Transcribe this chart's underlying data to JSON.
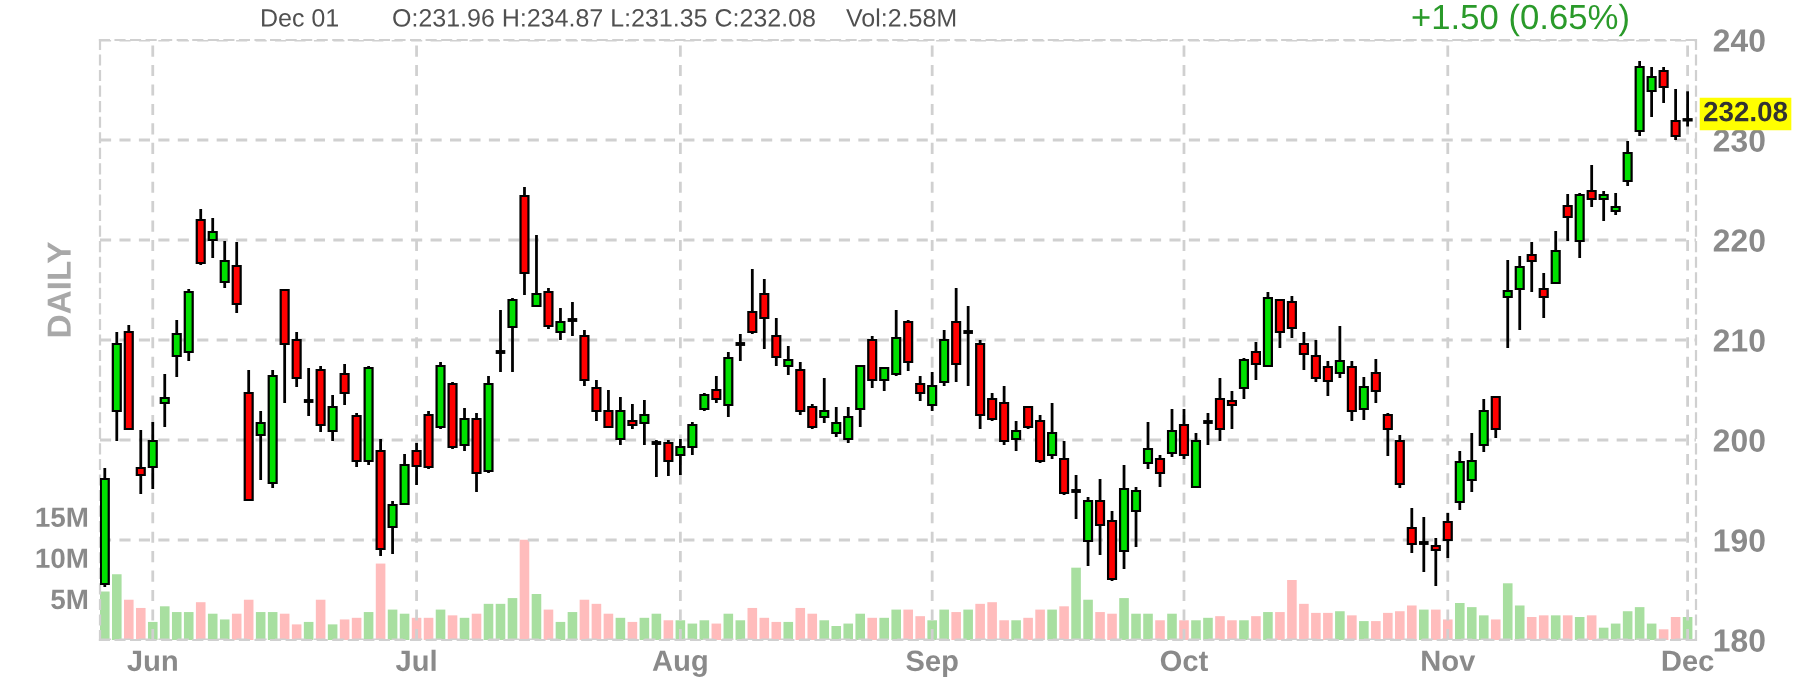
{
  "chart_data": {
    "type": "candlestick",
    "categories": [
      null,
      null,
      null,
      null,
      "Jun",
      null,
      null,
      null,
      null,
      null,
      null,
      null,
      null,
      null,
      null,
      null,
      null,
      null,
      null,
      null,
      null,
      null,
      null,
      null,
      null,
      null,
      "Jul",
      null,
      null,
      null,
      null,
      null,
      null,
      null,
      null,
      null,
      null,
      null,
      null,
      null,
      null,
      null,
      null,
      null,
      null,
      null,
      null,
      null,
      "Aug",
      null,
      null,
      null,
      null,
      null,
      null,
      null,
      null,
      null,
      null,
      null,
      null,
      null,
      null,
      null,
      null,
      null,
      null,
      null,
      null,
      "Sep",
      null,
      null,
      null,
      null,
      null,
      null,
      null,
      null,
      null,
      null,
      null,
      null,
      null,
      null,
      null,
      null,
      null,
      null,
      null,
      null,
      "Oct",
      null,
      null,
      null,
      null,
      null,
      null,
      null,
      null,
      null,
      null,
      null,
      null,
      null,
      null,
      null,
      null,
      null,
      null,
      null,
      null,
      null,
      "Nov",
      null,
      null,
      null,
      null,
      null,
      null,
      null,
      null,
      null,
      null,
      null,
      null,
      null,
      null,
      null,
      null,
      null,
      null,
      null,
      "Dec"
    ],
    "series": [
      {
        "type": "bar",
        "axis": "y2",
        "values": [
          5.9,
          8.0,
          4.9,
          3.9,
          2.2,
          4.1,
          3.4,
          3.4,
          4.6,
          3.2,
          2.5,
          3.2,
          4.9,
          3.4,
          3.4,
          3.2,
          1.9,
          2.2,
          4.9,
          1.9,
          2.5,
          2.7,
          3.4,
          9.3,
          3.7,
          3.2,
          2.7,
          2.7,
          3.7,
          3.0,
          2.7,
          3.2,
          4.4,
          4.4,
          5.1,
          12.2,
          5.6,
          3.7,
          2.2,
          3.4,
          4.9,
          4.4,
          3.2,
          2.7,
          2.2,
          2.7,
          3.2,
          2.4,
          2.4,
          2.0,
          2.4,
          2.0,
          3.2,
          2.4,
          3.9,
          2.7,
          2.2,
          2.2,
          3.9,
          3.2,
          2.4,
          1.7,
          2.0,
          3.2,
          2.7,
          2.7,
          3.7,
          3.7,
          2.9,
          2.4,
          3.7,
          3.4,
          3.7,
          4.4,
          4.6,
          2.4,
          2.4,
          2.7,
          3.7,
          3.7,
          4.1,
          8.8,
          4.9,
          3.4,
          3.2,
          5.1,
          3.2,
          3.2,
          2.4,
          3.2,
          2.4,
          2.4,
          2.7,
          2.9,
          2.4,
          2.4,
          2.9,
          3.4,
          3.4,
          7.3,
          4.4,
          3.3,
          3.3,
          3.5,
          3.0,
          2.3,
          2.3,
          3.3,
          3.5,
          4.2,
          3.7,
          3.7,
          2.5,
          4.5,
          4.0,
          3.0,
          2.5,
          6.9,
          4.2,
          2.8,
          3.0,
          3.0,
          3.0,
          2.8,
          3.0,
          1.5,
          2.0,
          3.5,
          4.0,
          2.0,
          1.3,
          2.8,
          2.8
        ],
        "colors": [
          "#a8dfa0",
          "#a8dfa0",
          "#ffbcbc",
          "#ffbcbc",
          "#a8dfa0",
          "#a8dfa0",
          "#a8dfa0",
          "#a8dfa0",
          "#ffbcbc",
          "#a8dfa0",
          "#a8dfa0",
          "#ffbcbc",
          "#ffbcbc",
          "#a8dfa0",
          "#a8dfa0",
          "#ffbcbc",
          "#ffbcbc",
          "#a8dfa0",
          "#ffbcbc",
          "#a8dfa0",
          "#ffbcbc",
          "#ffbcbc",
          "#a8dfa0",
          "#ffbcbc",
          "#a8dfa0",
          "#a8dfa0",
          "#ffbcbc",
          "#ffbcbc",
          "#a8dfa0",
          "#ffbcbc",
          "#a8dfa0",
          "#ffbcbc",
          "#a8dfa0",
          "#a8dfa0",
          "#a8dfa0",
          "#ffbcbc",
          "#a8dfa0",
          "#ffbcbc",
          "#a8dfa0",
          "#a8dfa0",
          "#ffbcbc",
          "#ffbcbc",
          "#ffbcbc",
          "#a8dfa0",
          "#ffbcbc",
          "#a8dfa0",
          "#a8dfa0",
          "#ffbcbc",
          "#a8dfa0",
          "#a8dfa0",
          "#a8dfa0",
          "#ffbcbc",
          "#a8dfa0",
          "#a8dfa0",
          "#ffbcbc",
          "#ffbcbc",
          "#ffbcbc",
          "#a8dfa0",
          "#ffbcbc",
          "#ffbcbc",
          "#a8dfa0",
          "#a8dfa0",
          "#a8dfa0",
          "#a8dfa0",
          "#ffbcbc",
          "#a8dfa0",
          "#a8dfa0",
          "#ffbcbc",
          "#ffbcbc",
          "#a8dfa0",
          "#a8dfa0",
          "#ffbcbc",
          "#a8dfa0",
          "#ffbcbc",
          "#ffbcbc",
          "#ffbcbc",
          "#a8dfa0",
          "#ffbcbc",
          "#ffbcbc",
          "#a8dfa0",
          "#ffbcbc",
          "#a8dfa0",
          "#a8dfa0",
          "#ffbcbc",
          "#ffbcbc",
          "#a8dfa0",
          "#a8dfa0",
          "#a8dfa0",
          "#ffbcbc",
          "#a8dfa0",
          "#ffbcbc",
          "#a8dfa0",
          "#a8dfa0",
          "#ffbcbc",
          "#ffbcbc",
          "#a8dfa0",
          "#ffbcbc",
          "#a8dfa0",
          "#ffbcbc",
          "#ffbcbc",
          "#ffbcbc",
          "#ffbcbc",
          "#ffbcbc",
          "#a8dfa0",
          "#ffbcbc",
          "#a8dfa0",
          "#ffbcbc",
          "#ffbcbc",
          "#ffbcbc",
          "#ffbcbc",
          "#a8dfa0",
          "#ffbcbc",
          "#ffbcbc",
          "#a8dfa0",
          "#a8dfa0",
          "#a8dfa0",
          "#ffbcbc",
          "#a8dfa0",
          "#a8dfa0",
          "#ffbcbc",
          "#ffbcbc",
          "#a8dfa0",
          "#ffbcbc",
          "#a8dfa0",
          "#ffbcbc",
          "#a8dfa0",
          "#a8dfa0",
          "#a8dfa0",
          "#a8dfa0",
          "#a8dfa0",
          "#ffbcbc",
          "#ffbcbc",
          "#a8dfa0"
        ]
      },
      {
        "ohlc": [
          [
            185.6,
            197.2,
            185.3,
            196.1
          ],
          [
            202.9,
            210.8,
            199.9,
            209.6
          ],
          [
            210.8,
            211.5,
            201.0,
            201.1
          ],
          [
            197.2,
            201.0,
            194.6,
            196.5
          ],
          [
            197.3,
            201.8,
            195.1,
            199.9
          ],
          [
            203.7,
            206.6,
            201.3,
            204.2
          ],
          [
            208.4,
            212.0,
            206.3,
            210.6
          ],
          [
            208.8,
            215.1,
            207.9,
            214.8
          ],
          [
            222.0,
            223.1,
            217.5,
            217.7
          ],
          [
            220.0,
            222.2,
            218.2,
            220.8
          ],
          [
            215.8,
            219.9,
            215.2,
            217.9
          ],
          [
            217.4,
            219.8,
            212.7,
            213.6
          ],
          [
            204.7,
            207.0,
            193.9,
            194.0
          ],
          [
            200.5,
            202.9,
            196.0,
            201.7
          ],
          [
            195.7,
            207.0,
            195.2,
            206.4
          ],
          [
            215.0,
            215.1,
            203.7,
            209.6
          ],
          [
            210.0,
            210.8,
            205.3,
            206.2
          ],
          [
            203.9,
            207.2,
            202.4,
            203.9
          ],
          [
            207.0,
            207.4,
            200.8,
            201.5
          ],
          [
            200.9,
            204.5,
            199.9,
            203.3
          ],
          [
            206.6,
            207.6,
            203.5,
            204.7
          ],
          [
            202.4,
            202.7,
            197.3,
            197.9
          ],
          [
            197.9,
            207.4,
            197.5,
            207.2
          ],
          [
            198.9,
            200.1,
            188.4,
            189.1
          ],
          [
            191.3,
            193.9,
            188.6,
            193.5
          ],
          [
            193.6,
            198.6,
            193.5,
            197.5
          ],
          [
            198.9,
            199.7,
            195.5,
            197.4
          ],
          [
            202.5,
            202.9,
            197.1,
            197.3
          ],
          [
            201.3,
            207.8,
            201.1,
            207.4
          ],
          [
            205.6,
            205.8,
            199.1,
            199.3
          ],
          [
            199.5,
            203.2,
            198.9,
            202.1
          ],
          [
            202.1,
            202.7,
            194.8,
            196.7
          ],
          [
            196.9,
            206.4,
            196.7,
            205.6
          ],
          [
            208.8,
            213.0,
            206.8,
            208.8
          ],
          [
            211.3,
            214.2,
            206.8,
            214.0
          ],
          [
            224.4,
            225.3,
            214.5,
            216.7
          ],
          [
            213.4,
            220.5,
            213.3,
            214.6
          ],
          [
            214.8,
            215.2,
            211.1,
            211.4
          ],
          [
            210.8,
            213.2,
            210.0,
            211.8
          ],
          [
            212.0,
            213.8,
            210.4,
            212.0
          ],
          [
            210.4,
            211.0,
            205.4,
            206.0
          ],
          [
            205.2,
            206.0,
            201.9,
            202.9
          ],
          [
            202.9,
            205.0,
            201.2,
            201.3
          ],
          [
            200.1,
            204.3,
            199.5,
            202.9
          ],
          [
            201.9,
            203.6,
            201.1,
            201.5
          ],
          [
            201.7,
            204.0,
            199.5,
            202.5
          ],
          [
            199.7,
            200.0,
            196.3,
            199.7
          ],
          [
            199.7,
            200.0,
            196.4,
            197.9
          ],
          [
            198.5,
            200.1,
            196.5,
            199.3
          ],
          [
            199.3,
            201.8,
            198.5,
            201.5
          ],
          [
            203.1,
            204.7,
            202.9,
            204.5
          ],
          [
            205.0,
            206.4,
            203.7,
            204.1
          ],
          [
            203.5,
            208.8,
            202.3,
            208.2
          ],
          [
            209.6,
            210.6,
            207.9,
            209.6
          ],
          [
            212.8,
            217.1,
            210.6,
            210.8
          ],
          [
            214.6,
            216.1,
            209.1,
            212.2
          ],
          [
            210.4,
            212.2,
            207.4,
            208.3
          ],
          [
            207.4,
            209.4,
            206.5,
            208.0
          ],
          [
            207.0,
            207.8,
            202.5,
            202.9
          ],
          [
            203.3,
            203.6,
            201.1,
            201.3
          ],
          [
            202.3,
            206.2,
            201.7,
            202.9
          ],
          [
            200.7,
            203.3,
            200.3,
            201.7
          ],
          [
            200.1,
            203.3,
            199.7,
            202.3
          ],
          [
            203.1,
            207.5,
            201.3,
            207.4
          ],
          [
            210.0,
            210.4,
            205.2,
            206.0
          ],
          [
            206.0,
            207.3,
            204.9,
            207.2
          ],
          [
            206.6,
            213.0,
            206.4,
            210.2
          ],
          [
            211.8,
            212.0,
            206.9,
            207.8
          ],
          [
            205.6,
            206.4,
            203.9,
            204.7
          ],
          [
            203.5,
            206.8,
            202.9,
            205.4
          ],
          [
            205.8,
            211.0,
            205.4,
            210.0
          ],
          [
            211.8,
            215.2,
            205.8,
            207.6
          ],
          [
            210.8,
            213.4,
            205.4,
            210.8
          ],
          [
            209.6,
            210.0,
            201.1,
            202.5
          ],
          [
            204.1,
            204.7,
            201.9,
            202.1
          ],
          [
            203.7,
            205.4,
            199.5,
            199.9
          ],
          [
            200.1,
            201.9,
            198.9,
            200.9
          ],
          [
            203.3,
            203.4,
            201.1,
            201.3
          ],
          [
            201.9,
            202.5,
            197.7,
            197.9
          ],
          [
            198.5,
            203.7,
            198.1,
            200.7
          ],
          [
            198.1,
            199.9,
            194.5,
            194.7
          ],
          [
            194.9,
            196.5,
            192.1,
            194.9
          ],
          [
            189.9,
            194.3,
            187.4,
            193.9
          ],
          [
            193.9,
            196.1,
            188.5,
            191.5
          ],
          [
            191.9,
            192.9,
            185.9,
            186.1
          ],
          [
            188.9,
            197.5,
            187.1,
            195.1
          ],
          [
            192.9,
            195.3,
            189.3,
            194.9
          ],
          [
            197.7,
            201.8,
            197.1,
            199.1
          ],
          [
            198.1,
            198.5,
            195.3,
            196.7
          ],
          [
            198.7,
            203.1,
            198.3,
            200.9
          ],
          [
            201.5,
            203.1,
            198.1,
            198.5
          ],
          [
            195.3,
            200.7,
            195.2,
            199.9
          ],
          [
            201.8,
            202.7,
            199.5,
            201.8
          ],
          [
            204.1,
            206.2,
            199.9,
            201.1
          ],
          [
            203.9,
            204.9,
            201.1,
            203.5
          ],
          [
            205.2,
            208.2,
            204.1,
            208.0
          ],
          [
            208.8,
            209.8,
            206.0,
            207.6
          ],
          [
            207.4,
            214.8,
            207.3,
            214.2
          ],
          [
            214.0,
            214.1,
            209.2,
            210.8
          ],
          [
            213.8,
            214.4,
            210.2,
            211.2
          ],
          [
            209.6,
            210.8,
            207.0,
            208.6
          ],
          [
            208.4,
            210.0,
            205.8,
            206.2
          ],
          [
            207.3,
            207.9,
            204.4,
            205.9
          ],
          [
            206.7,
            211.4,
            206.2,
            207.9
          ],
          [
            207.3,
            207.9,
            201.9,
            202.9
          ],
          [
            203.1,
            206.3,
            202.0,
            205.3
          ],
          [
            206.7,
            208.1,
            203.7,
            204.9
          ],
          [
            202.5,
            202.7,
            198.4,
            201.1
          ],
          [
            199.9,
            200.5,
            195.2,
            195.6
          ],
          [
            191.2,
            193.2,
            188.7,
            189.6
          ],
          [
            189.7,
            192.3,
            186.8,
            189.7
          ],
          [
            189.4,
            190.2,
            185.4,
            189.0
          ],
          [
            191.8,
            192.7,
            188.2,
            190.0
          ],
          [
            193.8,
            198.9,
            193.0,
            197.8
          ],
          [
            196.0,
            200.7,
            194.8,
            197.9
          ],
          [
            199.5,
            204.1,
            198.8,
            202.9
          ],
          [
            204.3,
            204.4,
            200.2,
            201.1
          ],
          [
            214.3,
            218.0,
            209.2,
            214.9
          ],
          [
            215.1,
            218.4,
            211.0,
            217.3
          ],
          [
            218.5,
            219.8,
            214.8,
            217.9
          ],
          [
            215.1,
            216.7,
            212.2,
            214.3
          ],
          [
            215.7,
            220.9,
            215.6,
            218.9
          ],
          [
            223.4,
            224.6,
            219.9,
            222.3
          ],
          [
            219.9,
            224.7,
            218.2,
            224.5
          ],
          [
            224.9,
            227.5,
            223.3,
            224.1
          ],
          [
            224.1,
            224.9,
            221.9,
            224.5
          ],
          [
            222.9,
            224.7,
            222.5,
            223.3
          ],
          [
            225.9,
            229.9,
            225.4,
            228.7
          ],
          [
            230.9,
            237.9,
            230.4,
            237.3
          ],
          [
            234.9,
            237.3,
            232.3,
            236.3
          ],
          [
            236.9,
            237.3,
            233.7,
            235.3
          ],
          [
            231.9,
            235.1,
            230.0,
            230.4
          ],
          [
            231.96,
            234.87,
            231.35,
            232.08
          ]
        ],
        "colors": [
          "#00e000",
          "#00e000",
          "#ff0000",
          "#ff0000",
          "#00e000",
          "#00e000",
          "#00e000",
          "#00e000",
          "#ff0000",
          "#00e000",
          "#00e000",
          "#ff0000",
          "#ff0000",
          "#00e000",
          "#00e000",
          "#ff0000",
          "#ff0000",
          "#000000",
          "#ff0000",
          "#00e000",
          "#ff0000",
          "#ff0000",
          "#00e000",
          "#ff0000",
          "#00e000",
          "#00e000",
          "#ff0000",
          "#ff0000",
          "#00e000",
          "#ff0000",
          "#00e000",
          "#ff0000",
          "#00e000",
          "#000000",
          "#00e000",
          "#ff0000",
          "#00e000",
          "#ff0000",
          "#00e000",
          "#000000",
          "#ff0000",
          "#ff0000",
          "#ff0000",
          "#00e000",
          "#ff0000",
          "#00e000",
          "#000000",
          "#ff0000",
          "#00e000",
          "#00e000",
          "#00e000",
          "#ff0000",
          "#00e000",
          "#000000",
          "#ff0000",
          "#ff0000",
          "#ff0000",
          "#00e000",
          "#ff0000",
          "#ff0000",
          "#00e000",
          "#00e000",
          "#00e000",
          "#00e000",
          "#ff0000",
          "#00e000",
          "#00e000",
          "#ff0000",
          "#ff0000",
          "#00e000",
          "#00e000",
          "#ff0000",
          "#000000",
          "#ff0000",
          "#ff0000",
          "#ff0000",
          "#00e000",
          "#ff0000",
          "#ff0000",
          "#00e000",
          "#ff0000",
          "#000000",
          "#00e000",
          "#ff0000",
          "#ff0000",
          "#00e000",
          "#00e000",
          "#00e000",
          "#ff0000",
          "#00e000",
          "#ff0000",
          "#00e000",
          "#000000",
          "#ff0000",
          "#ff0000",
          "#00e000",
          "#ff0000",
          "#00e000",
          "#ff0000",
          "#ff0000",
          "#ff0000",
          "#ff0000",
          "#ff0000",
          "#00e000",
          "#ff0000",
          "#00e000",
          "#ff0000",
          "#ff0000",
          "#ff0000",
          "#ff0000",
          "#000000",
          "#ff0000",
          "#ff0000",
          "#00e000",
          "#00e000",
          "#00e000",
          "#ff0000",
          "#00e000",
          "#00e000",
          "#ff0000",
          "#ff0000",
          "#00e000",
          "#ff0000",
          "#00e000",
          "#ff0000",
          "#00e000",
          "#00e000",
          "#00e000",
          "#00e000",
          "#00e000",
          "#ff0000",
          "#ff0000",
          "#00e000"
        ]
      }
    ],
    "ylim": [
      180,
      240
    ],
    "yticks": [
      180,
      190,
      200,
      210,
      220,
      230,
      240
    ],
    "y2lim": [
      0,
      73
    ],
    "y2ticks": [
      {
        "value": 5,
        "label": "5M"
      },
      {
        "value": 10,
        "label": "10M"
      },
      {
        "value": 15,
        "label": "15M"
      }
    ],
    "grid": true,
    "annotations": [
      "DAILY",
      "Dec 01",
      "O:231.96 H:234.87 L:231.35 C:232.08",
      "Vol:2.58M",
      "+1.50 (0.65%)",
      "232.08"
    ]
  }
}
